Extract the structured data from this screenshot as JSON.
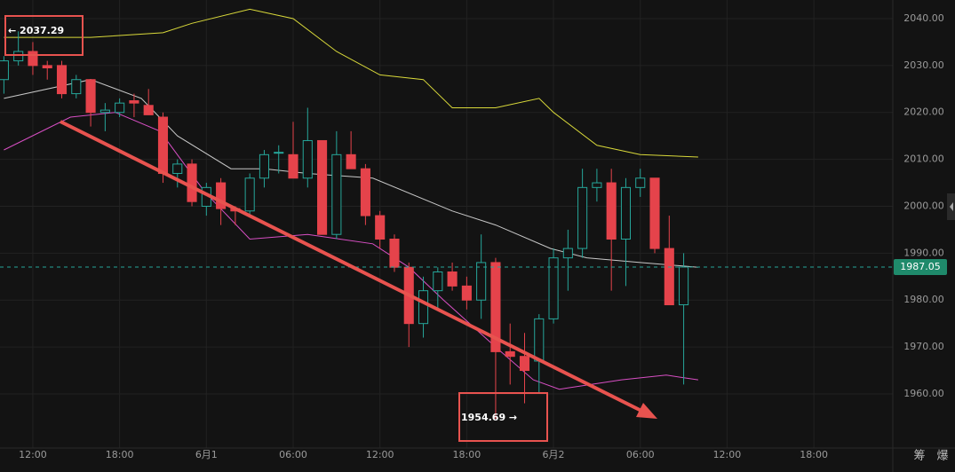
{
  "chart_data": {
    "type": "candlestick",
    "x": [
      -2,
      -1,
      0,
      1,
      2,
      3,
      4,
      5,
      6,
      7,
      8,
      9,
      10,
      11,
      12,
      13,
      14,
      15,
      16,
      17,
      18,
      19,
      20,
      21,
      22,
      23,
      24,
      25,
      26,
      27,
      28,
      29,
      30,
      31,
      32,
      33,
      34,
      35,
      36,
      37,
      38,
      39,
      40,
      41,
      42,
      43,
      44,
      45
    ],
    "open": [
      2027,
      2031,
      2033,
      2030,
      2030,
      2024,
      2027,
      2020,
      2020,
      2022.5,
      2021.5,
      2019,
      2007,
      2009,
      2000,
      2005,
      1999.5,
      1999,
      2006,
      2011.5,
      2011,
      2006,
      2014,
      1994,
      2011,
      2008,
      1998,
      1993,
      1987,
      1975,
      1982,
      1986,
      1983,
      1980,
      1988,
      1969,
      1968,
      1967,
      1976,
      1989,
      1991,
      2004,
      2005,
      1993,
      2004,
      2006,
      1991,
      1979
    ],
    "high": [
      2032,
      2037.29,
      2035,
      2031,
      2031,
      2028,
      2027,
      2022,
      2023,
      2024,
      2025,
      2020,
      2010,
      2010,
      2005,
      2006,
      2000,
      2007,
      2012,
      2013,
      2018,
      2021,
      2014,
      2016,
      2016,
      2009,
      1999,
      1994,
      1988,
      1985,
      1987,
      1988,
      1985,
      1994,
      1989,
      1975,
      1973,
      1977,
      1991,
      1995,
      2008,
      2008,
      2008,
      2006,
      2008,
      2006,
      1998,
      1990
    ],
    "low": [
      2024,
      2030,
      2028,
      2027,
      2023,
      2023,
      2017,
      2016,
      2019,
      2019,
      2020,
      2005,
      2004,
      2000,
      1998,
      1996,
      1996,
      1998,
      2004,
      2007,
      2006,
      2004,
      1994,
      1993,
      2008,
      1996,
      1991,
      1986,
      1970,
      1972,
      1978,
      1982,
      1978,
      1976,
      1954.69,
      1962,
      1958,
      1960,
      1975,
      1982,
      1989,
      2001,
      1982,
      1983,
      2002,
      1990,
      1979,
      1962
    ],
    "close": [
      2031,
      2033,
      2030,
      2029.5,
      2024,
      2027,
      2020,
      2020.5,
      2022,
      2022,
      2019.5,
      2007,
      2009,
      2001,
      2004,
      1999.5,
      1999,
      2006,
      2011,
      2011.5,
      2006,
      2014,
      1994,
      2011,
      2008,
      1998,
      1993,
      1987,
      1975,
      1982,
      1986,
      1983,
      1980,
      1988,
      1969,
      1968,
      1965,
      1976,
      1989,
      1991,
      2004,
      2005,
      1993,
      2004,
      2006,
      1991,
      1979,
      1987.05
    ],
    "up_color": "#26a69a",
    "down_color": "#e5434b",
    "lines": [
      {
        "color": "#d9d93a",
        "x": [
          -2,
          4,
          9,
          11,
          15,
          18,
          21,
          24,
          27,
          29,
          32,
          35,
          36,
          39,
          42,
          46
        ],
        "values": [
          2036,
          2036,
          2037,
          2039,
          2042,
          2040,
          2033,
          2028,
          2027,
          2021,
          2021,
          2023,
          2020,
          2013,
          2011,
          2010.5
        ]
      },
      {
        "color": "#c8c8c8",
        "x": [
          -2,
          4,
          7.5,
          10,
          13.7,
          16,
          19,
          23.5,
          29,
          32,
          35.8,
          38.3,
          42,
          46
        ],
        "values": [
          2023,
          2027,
          2023,
          2015,
          2008,
          2008,
          2007,
          2006,
          1999,
          1996,
          1991,
          1989,
          1988,
          1987
        ]
      },
      {
        "color": "#d84fc4",
        "x": [
          -2,
          2.6,
          5.7,
          8.8,
          11.9,
          15,
          19,
          23.5,
          26,
          28.4,
          32,
          34.6,
          36.4,
          40.7,
          43.8,
          46
        ],
        "values": [
          2012,
          2019,
          2020,
          2016,
          2003,
          1993,
          1994,
          1992,
          1987,
          1980,
          1970,
          1963,
          1961,
          1963,
          1964,
          1963
        ]
      }
    ],
    "last_price": 1987.05,
    "annotations": [
      "← 2037.29",
      "1954.69 →"
    ],
    "xlim": [
      -2.27,
      59.46
    ],
    "ylim": [
      1948.46,
      2043.97
    ],
    "xticks": [
      {
        "value": 0,
        "label": "12:00"
      },
      {
        "value": 6,
        "label": "18:00"
      },
      {
        "value": 12,
        "label": "6月1"
      },
      {
        "value": 18,
        "label": "06:00"
      },
      {
        "value": 24,
        "label": "12:00"
      },
      {
        "value": 30,
        "label": "18:00"
      },
      {
        "value": 36,
        "label": "6月2"
      },
      {
        "value": 42,
        "label": "06:00"
      },
      {
        "value": 48,
        "label": "12:00"
      },
      {
        "value": 54,
        "label": "18:00"
      }
    ],
    "yticks": [
      {
        "value": 1960,
        "label": "1960.00"
      },
      {
        "value": 1970,
        "label": "1970.00"
      },
      {
        "value": 1980,
        "label": "1980.00"
      },
      {
        "value": 1990,
        "label": "1990.00"
      },
      {
        "value": 2000,
        "label": "2000.00"
      },
      {
        "value": 2010,
        "label": "2010.00"
      },
      {
        "value": 2020,
        "label": "2020.00"
      },
      {
        "value": 2030,
        "label": "2030.00"
      },
      {
        "value": 2040,
        "label": "2040.00"
      }
    ],
    "grid": true,
    "toolbar": [
      "筹",
      "爆"
    ]
  }
}
